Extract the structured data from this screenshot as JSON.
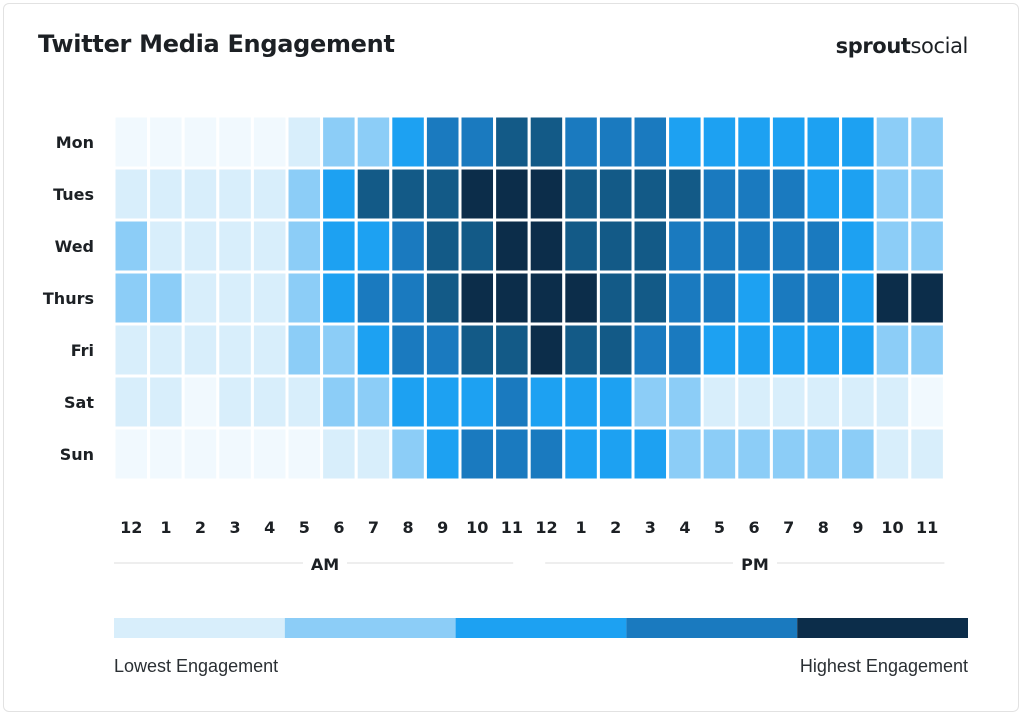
{
  "header": {
    "title": "Twitter Media Engagement",
    "brand_bold": "sprout",
    "brand_light": "social"
  },
  "colors": {
    "level0": "#f1f9fe",
    "level1": "#d8eefb",
    "level2": "#8ccdf7",
    "level3": "#1da1f2",
    "level4": "#1a7abf",
    "level5": "#135a87",
    "level6": "#0c2d4a",
    "gridline": "#ffffff",
    "text": "#1c2024",
    "divider": "#dddddd"
  },
  "chart_data": {
    "type": "heatmap",
    "title": "Twitter Media Engagement",
    "rows": [
      "Mon",
      "Tues",
      "Wed",
      "Thurs",
      "Fri",
      "Sat",
      "Sun"
    ],
    "columns": [
      "12",
      "1",
      "2",
      "3",
      "4",
      "5",
      "6",
      "7",
      "8",
      "9",
      "10",
      "11",
      "12",
      "1",
      "2",
      "3",
      "4",
      "5",
      "6",
      "7",
      "8",
      "9",
      "10",
      "11"
    ],
    "period_labels": [
      "AM",
      "PM"
    ],
    "scale_min": 0,
    "scale_max": 6,
    "values": [
      [
        0,
        0,
        0,
        0,
        0,
        1,
        2,
        2,
        3,
        4,
        4,
        5,
        5,
        4,
        4,
        4,
        3,
        3,
        3,
        3,
        3,
        3,
        2,
        2
      ],
      [
        1,
        1,
        1,
        1,
        1,
        2,
        3,
        5,
        5,
        5,
        6,
        6,
        6,
        5,
        5,
        5,
        5,
        4,
        4,
        4,
        3,
        3,
        2,
        2
      ],
      [
        2,
        1,
        1,
        1,
        1,
        2,
        3,
        3,
        4,
        5,
        5,
        6,
        6,
        5,
        5,
        5,
        4,
        4,
        4,
        4,
        4,
        3,
        2,
        2
      ],
      [
        2,
        2,
        1,
        1,
        1,
        2,
        3,
        4,
        4,
        5,
        6,
        6,
        6,
        6,
        5,
        5,
        4,
        4,
        3,
        4,
        4,
        3,
        6,
        6
      ],
      [
        1,
        1,
        1,
        1,
        1,
        2,
        2,
        3,
        4,
        4,
        5,
        5,
        6,
        5,
        5,
        4,
        4,
        3,
        3,
        3,
        3,
        3,
        2,
        2
      ],
      [
        1,
        1,
        0,
        1,
        1,
        1,
        2,
        2,
        3,
        3,
        3,
        4,
        3,
        3,
        3,
        2,
        2,
        1,
        1,
        1,
        1,
        1,
        1,
        0
      ],
      [
        0,
        0,
        0,
        0,
        0,
        0,
        1,
        1,
        2,
        3,
        4,
        4,
        4,
        3,
        3,
        3,
        2,
        2,
        2,
        2,
        2,
        2,
        1,
        1
      ]
    ],
    "legend": {
      "low_label": "Lowest Engagement",
      "high_label": "Highest Engagement",
      "swatches": [
        "#d8eefb",
        "#8ccdf7",
        "#1da1f2",
        "#1a7abf",
        "#0c2d4a"
      ]
    }
  }
}
